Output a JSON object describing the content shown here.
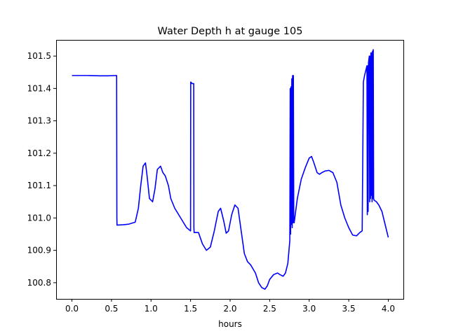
{
  "chart_data": {
    "type": "line",
    "title": "Water Depth h at gauge 105",
    "xlabel": "hours",
    "ylabel": "",
    "xlim": [
      -0.2,
      4.2
    ],
    "ylim": [
      100.75,
      101.55
    ],
    "x_ticks": [
      0.0,
      0.5,
      1.0,
      1.5,
      2.0,
      2.5,
      3.0,
      3.5,
      4.0
    ],
    "x_tick_labels": [
      "0.0",
      "0.5",
      "1.0",
      "1.5",
      "2.0",
      "2.5",
      "3.0",
      "3.5",
      "4.0"
    ],
    "y_ticks": [
      100.8,
      100.9,
      101.0,
      101.1,
      101.2,
      101.3,
      101.4,
      101.5
    ],
    "y_tick_labels": [
      "100.8",
      "100.9",
      "101.0",
      "101.1",
      "101.2",
      "101.3",
      "101.4",
      "101.5"
    ],
    "grid": false,
    "series": [
      {
        "color": "#0000ff",
        "x": [
          0.0,
          0.2,
          0.35,
          0.45,
          0.565,
          0.568,
          0.57,
          0.65,
          0.72,
          0.8,
          0.84,
          0.87,
          0.9,
          0.93,
          0.95,
          0.98,
          1.02,
          1.05,
          1.08,
          1.12,
          1.15,
          1.18,
          1.22,
          1.25,
          1.3,
          1.35,
          1.4,
          1.45,
          1.5,
          1.502,
          1.52,
          1.54,
          1.542,
          1.545,
          1.6,
          1.65,
          1.7,
          1.75,
          1.8,
          1.85,
          1.88,
          1.92,
          1.95,
          1.98,
          2.02,
          2.06,
          2.1,
          2.14,
          2.18,
          2.22,
          2.26,
          2.32,
          2.36,
          2.4,
          2.44,
          2.47,
          2.5,
          2.55,
          2.6,
          2.63,
          2.67,
          2.7,
          2.73,
          2.755,
          2.76,
          2.765,
          2.77,
          2.775,
          2.78,
          2.785,
          2.79,
          2.795,
          2.8,
          2.805,
          2.81,
          2.85,
          2.9,
          2.95,
          3.0,
          3.03,
          3.06,
          3.1,
          3.13,
          3.16,
          3.2,
          3.25,
          3.3,
          3.35,
          3.4,
          3.45,
          3.5,
          3.55,
          3.6,
          3.64,
          3.67,
          3.685,
          3.7,
          3.72,
          3.73,
          3.735,
          3.74,
          3.745,
          3.75,
          3.76,
          3.765,
          3.77,
          3.775,
          3.78,
          3.785,
          3.79,
          3.795,
          3.8,
          3.805,
          3.81,
          3.815,
          3.82,
          3.85,
          3.88,
          3.92,
          3.95,
          4.0
        ],
        "y": [
          101.44,
          101.44,
          101.439,
          101.439,
          101.44,
          101.0,
          100.978,
          100.979,
          100.981,
          100.987,
          101.03,
          101.1,
          101.16,
          101.17,
          101.13,
          101.06,
          101.05,
          101.09,
          101.15,
          101.16,
          101.14,
          101.13,
          101.1,
          101.06,
          101.03,
          101.01,
          100.99,
          100.97,
          100.96,
          101.42,
          101.415,
          101.415,
          100.97,
          100.955,
          100.955,
          100.92,
          100.9,
          100.91,
          100.96,
          101.02,
          101.03,
          100.99,
          100.953,
          100.96,
          101.01,
          101.04,
          101.03,
          100.96,
          100.89,
          100.865,
          100.855,
          100.83,
          100.8,
          100.785,
          100.78,
          100.79,
          100.81,
          100.825,
          100.83,
          100.825,
          100.82,
          100.83,
          100.86,
          100.93,
          101.4,
          100.95,
          101.405,
          100.98,
          101.43,
          100.97,
          101.44,
          100.985,
          101.44,
          100.99,
          100.985,
          101.06,
          101.12,
          101.155,
          101.185,
          101.19,
          101.17,
          101.14,
          101.135,
          101.14,
          101.145,
          101.147,
          101.14,
          101.11,
          101.04,
          101.0,
          100.97,
          100.947,
          100.945,
          100.955,
          100.96,
          101.42,
          101.44,
          101.46,
          101.47,
          101.01,
          101.47,
          101.02,
          101.48,
          101.5,
          101.05,
          101.5,
          101.06,
          101.51,
          101.07,
          101.51,
          101.05,
          101.515,
          101.06,
          101.52,
          101.06,
          101.055,
          101.05,
          101.04,
          101.02,
          100.99,
          100.94
        ]
      }
    ]
  }
}
